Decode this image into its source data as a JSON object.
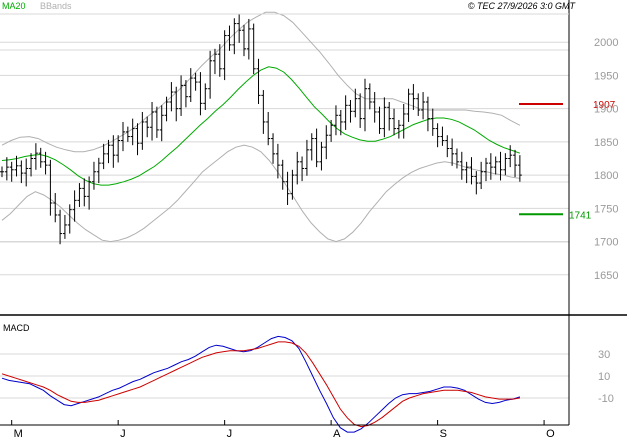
{
  "header": {
    "ma_label": "MA20",
    "bands_label": "BBands",
    "copyright": "© TEC 27/9/2026 3:0 GMT"
  },
  "colors": {
    "ma": "#00aa00",
    "bands": "#b0b0b0",
    "price": "#000000",
    "resistance": "#cc0000",
    "support": "#009900",
    "macd": "#0000cc",
    "signal": "#cc0000",
    "grid": "#d8d8d8",
    "axis_text": "#9a9a9a"
  },
  "chart_data": [
    {
      "type": "ohlc",
      "title": "",
      "legend": [
        "MA20",
        "BBands"
      ],
      "ylim": [
        1600,
        2050
      ],
      "yticks": [
        1650,
        1700,
        1750,
        1800,
        1850,
        1900,
        1950,
        2000
      ],
      "xtick_labels": [
        {
          "label": "M",
          "index": 2
        },
        {
          "label": "J",
          "index": 24
        },
        {
          "label": "J",
          "index": 46
        },
        {
          "label": "A",
          "index": 68
        },
        {
          "label": "S",
          "index": 90
        },
        {
          "label": "O",
          "index": 112
        }
      ],
      "levels": [
        {
          "name": "resistance",
          "value": 1907,
          "label": "1907"
        },
        {
          "name": "support",
          "value": 1741,
          "label": "1741"
        }
      ],
      "close": [
        1805,
        1812,
        1808,
        1814,
        1803,
        1810,
        1825,
        1833,
        1820,
        1815,
        1758,
        1740,
        1712,
        1725,
        1748,
        1762,
        1780,
        1768,
        1790,
        1805,
        1818,
        1832,
        1845,
        1830,
        1852,
        1865,
        1858,
        1870,
        1848,
        1880,
        1872,
        1895,
        1868,
        1890,
        1910,
        1925,
        1900,
        1935,
        1918,
        1946,
        1940,
        1908,
        1930,
        1972,
        1982,
        1960,
        2010,
        1996,
        2028,
        2018,
        1990,
        2020,
        1960,
        1920,
        1880,
        1855,
        1832,
        1815,
        1790,
        1772,
        1800,
        1820,
        1810,
        1838,
        1855,
        1820,
        1842,
        1860,
        1875,
        1890,
        1880,
        1905,
        1896,
        1915,
        1885,
        1930,
        1910,
        1895,
        1870,
        1902,
        1885,
        1870,
        1875,
        1892,
        1922,
        1915,
        1898,
        1910,
        1885,
        1870,
        1858,
        1852,
        1840,
        1832,
        1820,
        1808,
        1812,
        1798,
        1788,
        1805,
        1818,
        1812,
        1820,
        1808,
        1825,
        1830,
        1815,
        1800
      ],
      "ma20": [
        1822,
        1823,
        1825,
        1828,
        1830,
        1831,
        1828,
        1823,
        1816,
        1808,
        1799,
        1792,
        1787,
        1785,
        1785,
        1787,
        1790,
        1794,
        1799,
        1806,
        1813,
        1822,
        1832,
        1842,
        1853,
        1864,
        1875,
        1885,
        1896,
        1906,
        1917,
        1929,
        1940,
        1950,
        1958,
        1963,
        1961,
        1955,
        1944,
        1931,
        1917,
        1903,
        1892,
        1880,
        1870,
        1862,
        1857,
        1853,
        1851,
        1851,
        1854,
        1858,
        1864,
        1870,
        1876,
        1880,
        1884,
        1886,
        1886,
        1884,
        1880,
        1874,
        1868,
        1860,
        1852,
        1846,
        1841,
        1837,
        1833
      ],
      "bb_upper": [
        1845,
        1852,
        1857,
        1858,
        1855,
        1848,
        1842,
        1838,
        1835,
        1835,
        1838,
        1843,
        1850,
        1858,
        1866,
        1876,
        1888,
        1898,
        1910,
        1922,
        1935,
        1950,
        1965,
        1978,
        1990,
        2005,
        2018,
        2030,
        2038,
        2045,
        2045,
        2040,
        2030,
        2015,
        2000,
        1985,
        1968,
        1950,
        1935,
        1922,
        1915,
        1915,
        1915,
        1915,
        1910,
        1905,
        1900,
        1898,
        1898,
        1898,
        1898,
        1898,
        1896,
        1895,
        1893,
        1890,
        1882,
        1875
      ],
      "bb_lower": [
        1732,
        1742,
        1755,
        1768,
        1775,
        1770,
        1762,
        1752,
        1740,
        1728,
        1718,
        1710,
        1702,
        1700,
        1702,
        1706,
        1712,
        1720,
        1730,
        1740,
        1750,
        1762,
        1776,
        1790,
        1805,
        1815,
        1825,
        1835,
        1842,
        1845,
        1842,
        1835,
        1822,
        1805,
        1785,
        1765,
        1745,
        1728,
        1715,
        1704,
        1700,
        1704,
        1714,
        1728,
        1745,
        1760,
        1775,
        1786,
        1796,
        1804,
        1810,
        1814,
        1818,
        1820,
        1818,
        1814,
        1810,
        1807,
        1805,
        1802,
        1800,
        1797,
        1795
      ]
    },
    {
      "type": "line",
      "title": "MACD",
      "ylim": [
        -45,
        50
      ],
      "yticks": [
        30,
        10,
        -10
      ],
      "series": [
        {
          "name": "macd",
          "values": [
            8,
            6,
            5,
            4,
            3,
            0,
            -3,
            -8,
            -12,
            -16,
            -17,
            -15,
            -13,
            -11,
            -9,
            -6,
            -3,
            -1,
            2,
            5,
            7,
            10,
            13,
            15,
            17,
            20,
            23,
            25,
            28,
            32,
            36,
            38,
            37,
            35,
            33,
            32,
            33,
            36,
            40,
            44,
            46,
            45,
            42,
            35,
            23,
            10,
            -3,
            -15,
            -28,
            -37,
            -41,
            -41,
            -38,
            -33,
            -27,
            -21,
            -15,
            -10,
            -7,
            -6,
            -6,
            -5,
            -4,
            -2,
            0,
            0,
            -1,
            -3,
            -7,
            -11,
            -14,
            -15,
            -14,
            -12,
            -11,
            -9
          ]
        },
        {
          "name": "signal",
          "values": [
            12,
            10,
            8,
            6,
            4,
            2,
            0,
            -3,
            -7,
            -10,
            -13,
            -14,
            -14,
            -13,
            -12,
            -10,
            -8,
            -6,
            -4,
            -2,
            0,
            3,
            6,
            9,
            12,
            15,
            18,
            21,
            24,
            27,
            29,
            31,
            32,
            33,
            33,
            33,
            34,
            35,
            37,
            39,
            41,
            41,
            40,
            37,
            31,
            22,
            12,
            2,
            -9,
            -20,
            -28,
            -34,
            -36,
            -35,
            -32,
            -28,
            -23,
            -18,
            -13,
            -10,
            -8,
            -6,
            -5,
            -4,
            -3,
            -3,
            -3,
            -4,
            -5,
            -7,
            -9,
            -10,
            -11,
            -11,
            -11,
            -10
          ]
        }
      ]
    }
  ]
}
